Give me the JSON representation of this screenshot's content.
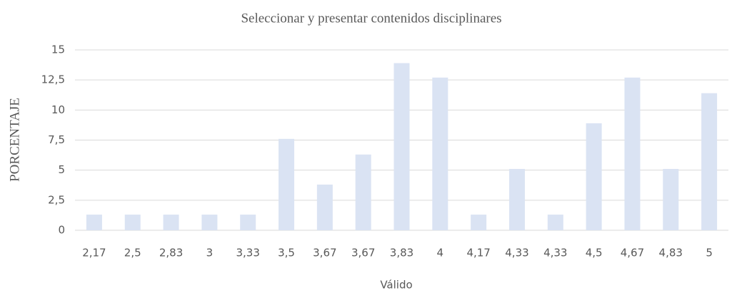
{
  "chart_data": {
    "type": "bar",
    "title": "Seleccionar y presentar contenidos disciplinares",
    "x_label": "Válido",
    "y_label": "PORCENTAJE",
    "categories": [
      "2,17",
      "2,5",
      "2,83",
      "3",
      "3,33",
      "3,5",
      "3,67",
      "3,67",
      "3,83",
      "4",
      "4,17",
      "4,33",
      "4,33",
      "4,5",
      "4,67",
      "4,83",
      "5"
    ],
    "values": [
      1.3,
      1.3,
      1.3,
      1.3,
      1.3,
      7.6,
      3.8,
      6.3,
      13.9,
      12.7,
      1.3,
      5.1,
      1.3,
      8.9,
      12.7,
      5.1,
      11.4
    ],
    "color": "#dae3f3",
    "ylim": [
      0,
      15
    ],
    "yticks": [
      0,
      {
        "value": 2.5,
        "label": "2,5"
      },
      5,
      {
        "value": 7.5,
        "label": "7,5"
      },
      10,
      {
        "value": 12.5,
        "label": "12,5"
      },
      15
    ],
    "grid": true
  }
}
